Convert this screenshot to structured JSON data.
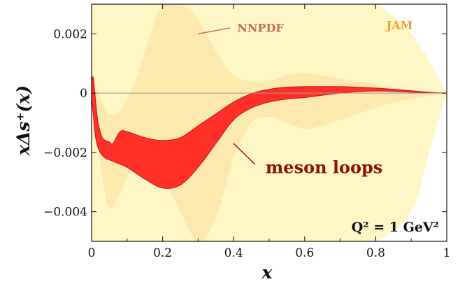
{
  "chart_data": {
    "type": "area",
    "title": "",
    "xlabel": "x",
    "ylabel": "xΔs⁺(x)",
    "xlim": [
      0,
      1
    ],
    "ylim": [
      -0.005,
      0.003
    ],
    "x_ticks": [
      0,
      0.2,
      0.4,
      0.6,
      0.8,
      1
    ],
    "x_tick_labels": [
      "0",
      "0.2",
      "0.4",
      "0.6",
      "0.8",
      "1"
    ],
    "y_ticks": [
      -0.004,
      -0.002,
      0,
      0.002
    ],
    "y_tick_labels": [
      "−0.004",
      "−0.002",
      "0",
      "0.002"
    ],
    "grid": false,
    "zero_line": true,
    "scale_label": "Q² = 1 GeV²",
    "colors": {
      "jam": "#fff6c6",
      "nnpdf": "#fde8ad",
      "meson": "#ff3026",
      "meson_edge": "#c8121e",
      "nnpdf_label": "#c66b5b",
      "jam_label": "#f59e25",
      "meson_label": "#8a1010",
      "zero_line": "#9a9a9a"
    },
    "series": [
      {
        "name": "JAM",
        "kind": "band",
        "x": [
          0,
          0.05,
          0.1,
          0.2,
          0.3,
          0.4,
          0.5,
          0.6,
          0.7,
          0.8,
          0.9,
          0.95,
          1.0
        ],
        "upper": [
          0.003,
          0.003,
          0.003,
          0.003,
          0.003,
          0.003,
          0.003,
          0.003,
          0.003,
          0.003,
          0.002,
          0.0011,
          0.0
        ],
        "lower": [
          -0.005,
          -0.005,
          -0.005,
          -0.005,
          -0.005,
          -0.005,
          -0.005,
          -0.005,
          -0.005,
          -0.005,
          -0.004,
          -0.002,
          0.0
        ]
      },
      {
        "name": "NNPDF",
        "kind": "band",
        "x": [
          0,
          0.03,
          0.05,
          0.08,
          0.12,
          0.16,
          0.2,
          0.25,
          0.3,
          0.35,
          0.4,
          0.45,
          0.5,
          0.55,
          0.6,
          0.65,
          0.7,
          0.75,
          0.8,
          0.85,
          0.9,
          0.95,
          1.0
        ],
        "upper": [
          0.0008,
          -0.0003,
          -0.0007,
          -0.0006,
          0.0003,
          0.0018,
          0.003,
          0.003,
          0.0025,
          0.0014,
          0.0006,
          0.0004,
          0.0004,
          0.0006,
          0.0007,
          0.0006,
          0.0005,
          0.0004,
          0.0003,
          0.0002,
          0.0001,
          5e-05,
          0.0
        ],
        "lower": [
          0.0,
          -0.0028,
          -0.0039,
          -0.0034,
          -0.0024,
          -0.0022,
          -0.0028,
          -0.004,
          -0.005,
          -0.0042,
          -0.0022,
          -0.001,
          -0.0008,
          -0.001,
          -0.0012,
          -0.0011,
          -0.0009,
          -0.0007,
          -0.0005,
          -0.0003,
          -0.0002,
          -0.0001,
          0.0
        ]
      },
      {
        "name": "meson loops",
        "kind": "band",
        "x": [
          0.0,
          0.003,
          0.006,
          0.01,
          0.015,
          0.02,
          0.03,
          0.04,
          0.05,
          0.06,
          0.08,
          0.1,
          0.15,
          0.2,
          0.25,
          0.3,
          0.35,
          0.4,
          0.45,
          0.5,
          0.55,
          0.6,
          0.65,
          0.7,
          0.75,
          0.8,
          0.85,
          0.9,
          0.95,
          1.0
        ],
        "upper": [
          0.0003,
          0.00055,
          0.0004,
          -0.0001,
          -0.0007,
          -0.0011,
          -0.0015,
          -0.0016,
          -0.00165,
          -0.0017,
          -0.0013,
          -0.0013,
          -0.0015,
          -0.0016,
          -0.0015,
          -0.0011,
          -0.0007,
          -0.0003,
          -2e-05,
          0.00013,
          0.0002,
          0.00022,
          0.00022,
          0.00022,
          0.0002,
          0.00017,
          0.00013,
          8e-05,
          3e-05,
          0.0
        ],
        "lower": [
          -0.0002,
          -0.0005,
          -0.0009,
          -0.0014,
          -0.0017,
          -0.0019,
          -0.0021,
          -0.0022,
          -0.00225,
          -0.0023,
          -0.0024,
          -0.0025,
          -0.0029,
          -0.0032,
          -0.0031,
          -0.0025,
          -0.0017,
          -0.0009,
          -0.0005,
          -0.0003,
          -0.0002,
          -0.00015,
          -7e-05,
          0.0,
          5e-05,
          7e-05,
          6e-05,
          3e-05,
          1e-05,
          0.0
        ]
      }
    ],
    "annotations": [
      {
        "text": "NNPDF",
        "x": 0.41,
        "y": 0.0022,
        "pointer_from": [
          0.39,
          0.0022
        ],
        "pointer_to": [
          0.3,
          0.002
        ]
      },
      {
        "text": "JAM",
        "x": 0.83,
        "y": 0.0023
      },
      {
        "text": "meson loops",
        "x": 0.49,
        "y": -0.0025,
        "pointer_from": [
          0.46,
          -0.0024
        ],
        "pointer_to": [
          0.4,
          -0.0017
        ]
      }
    ]
  }
}
